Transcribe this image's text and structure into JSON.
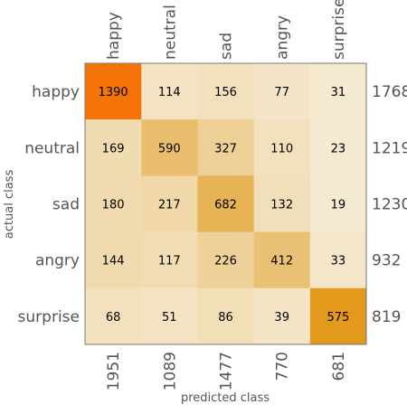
{
  "chart_data": {
    "type": "heatmap",
    "title": "",
    "xlabel": "predicted class",
    "ylabel": "actual class",
    "col_labels": [
      "happy",
      "neutral",
      "sad",
      "angry",
      "surprise"
    ],
    "row_labels": [
      "happy",
      "neutral",
      "sad",
      "angry",
      "surprise"
    ],
    "values": [
      [
        1390,
        114,
        156,
        77,
        31
      ],
      [
        169,
        590,
        327,
        110,
        23
      ],
      [
        180,
        217,
        682,
        132,
        19
      ],
      [
        144,
        117,
        226,
        412,
        33
      ],
      [
        68,
        51,
        86,
        39,
        575
      ]
    ],
    "row_totals": [
      1768,
      1219,
      1230,
      932,
      819
    ],
    "col_totals": [
      1951,
      1089,
      1477,
      770,
      681
    ],
    "colors": {
      "low": "#f6ecd8",
      "mid": "#e9bd6a",
      "high_diag": "#e0900a",
      "max": "#fd6a08",
      "axis_text": "#555555",
      "cell_text": "#000000",
      "frame": "#777777"
    }
  }
}
